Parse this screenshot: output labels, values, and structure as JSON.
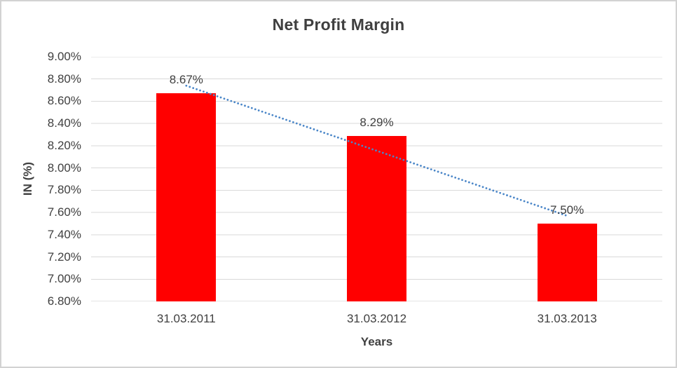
{
  "chart_data": {
    "type": "bar",
    "title": "Net Profit Margin",
    "categories": [
      "31.03.2011",
      "31.03.2012",
      "31.03.2013"
    ],
    "values": [
      8.67,
      8.29,
      7.5
    ],
    "data_labels": [
      "8.67%",
      "8.29%",
      "7.50%"
    ],
    "xlabel": "Years",
    "ylabel": "IN (%)",
    "ylim": [
      6.8,
      9.0
    ],
    "ytick_step": 0.2,
    "ytick_labels": [
      "9.00%",
      "8.80%",
      "8.60%",
      "8.40%",
      "8.20%",
      "8.00%",
      "7.80%",
      "7.60%",
      "7.40%",
      "7.20%",
      "7.00%",
      "6.80%"
    ],
    "grid": true,
    "legend": "none",
    "bar_color": "#FF0000",
    "trendline": {
      "type": "linear",
      "style": "dotted",
      "color": "#4A86C8",
      "start_value": 8.74,
      "end_value": 7.57
    },
    "colors": {
      "grid": "#D9D9D9",
      "baseline": "#C9C9C9",
      "text": "#404040",
      "title_text": "#3F3F3F",
      "background": "#FFFFFF",
      "frame_border": "#D2D2D2"
    }
  }
}
